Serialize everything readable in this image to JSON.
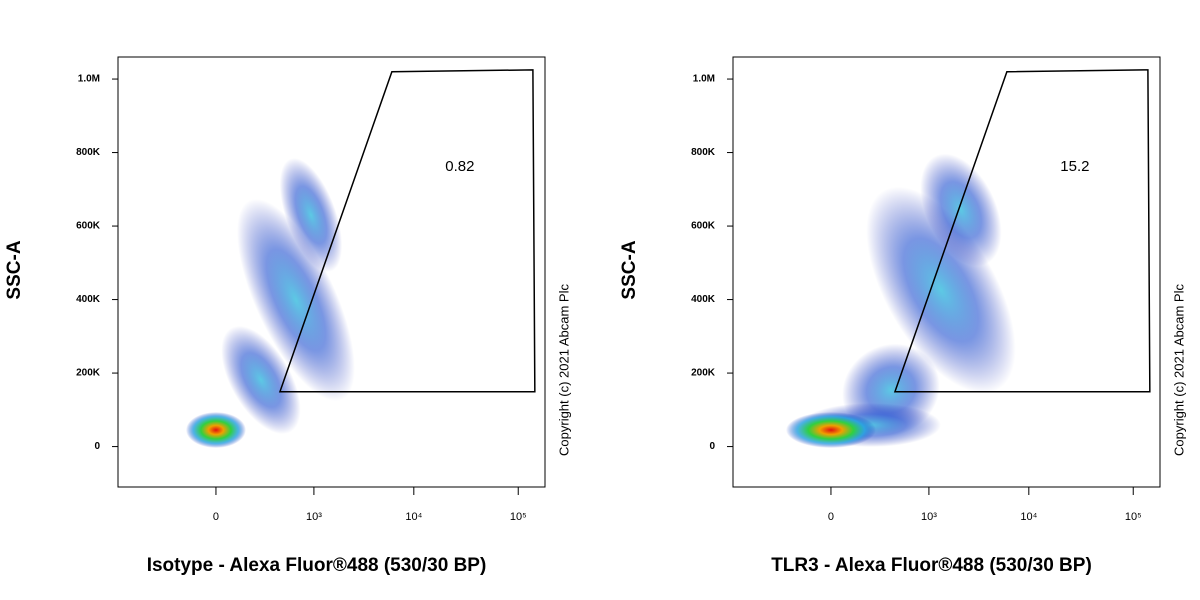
{
  "chart_data": [
    {
      "type": "density",
      "xlabel": "Isotype - Alexa Fluor®488 (530/30 BP)",
      "ylabel": "SSC-A",
      "xscale": "biexponential",
      "xlim": [
        -1000,
        180000
      ],
      "ylim": [
        -110000,
        1060000
      ],
      "xticks": [
        0,
        {
          "value": 1000,
          "label": "10³"
        },
        {
          "value": 10000,
          "label": "10⁴"
        },
        {
          "value": 100000,
          "label": "10⁵"
        }
      ],
      "yticks": [
        0,
        {
          "value": 200000,
          "label": "200K"
        },
        {
          "value": 400000,
          "label": "400K"
        },
        {
          "value": 600000,
          "label": "600K"
        },
        {
          "value": 800000,
          "label": "800K"
        },
        {
          "value": 1000000,
          "label": "1.0M"
        }
      ],
      "gate": {
        "x": [
          405,
          6130,
          138000,
          144000
        ],
        "y": [
          149000,
          1020000,
          1025000,
          149000
        ],
        "value": 0.82
      },
      "copyright": "Copyright (c) 2021 Abcam Plc"
    },
    {
      "type": "density",
      "xlabel": "TLR3 - Alexa Fluor®488 (530/30 BP)",
      "ylabel": "SSC-A",
      "xscale": "biexponential",
      "xlim": [
        -1000,
        180000
      ],
      "ylim": [
        -110000,
        1060000
      ],
      "xticks": [
        0,
        {
          "value": 1000,
          "label": "10³"
        },
        {
          "value": 10000,
          "label": "10⁴"
        },
        {
          "value": 100000,
          "label": "10⁵"
        }
      ],
      "yticks": [
        0,
        {
          "value": 200000,
          "label": "200K"
        },
        {
          "value": 400000,
          "label": "400K"
        },
        {
          "value": 600000,
          "label": "600K"
        },
        {
          "value": 800000,
          "label": "800K"
        },
        {
          "value": 1000000,
          "label": "1.0M"
        }
      ],
      "gate": {
        "x": [
          405,
          6130,
          138000,
          144000
        ],
        "y": [
          149000,
          1020000,
          1025000,
          149000
        ],
        "value": 15.2
      },
      "copyright": "Copyright (c) 2021 Abcam Plc"
    }
  ]
}
